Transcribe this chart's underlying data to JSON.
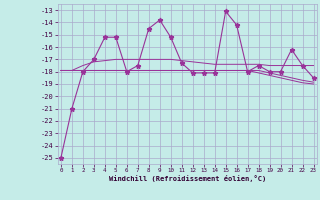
{
  "xlabel": "Windchill (Refroidissement éolien,°C)",
  "background_color": "#c5ece8",
  "grid_color": "#aaaacc",
  "line_color": "#993399",
  "x": [
    0,
    1,
    2,
    3,
    4,
    5,
    6,
    7,
    8,
    9,
    10,
    11,
    12,
    13,
    14,
    15,
    16,
    17,
    18,
    19,
    20,
    21,
    22,
    23
  ],
  "y_main": [
    -25,
    -21,
    -18,
    -17,
    -15.2,
    -15.2,
    -18,
    -17.5,
    -14.5,
    -13.8,
    -15.2,
    -17.3,
    -18.1,
    -18.1,
    -18.1,
    -13.1,
    -14.2,
    -18,
    -17.5,
    -18,
    -18,
    -16.2,
    -17.5,
    -18.5
  ],
  "y_smooth1": [
    -17.9,
    -17.9,
    -17.9,
    -17.9,
    -17.9,
    -17.9,
    -17.9,
    -17.9,
    -17.9,
    -17.9,
    -17.9,
    -17.9,
    -17.9,
    -17.9,
    -17.9,
    -17.9,
    -17.9,
    -17.9,
    -17.9,
    -18.1,
    -18.3,
    -18.5,
    -18.7,
    -18.85
  ],
  "y_smooth2": [
    -17.9,
    -17.9,
    -17.5,
    -17.2,
    -17.1,
    -17.0,
    -17.0,
    -17.0,
    -17.0,
    -17.0,
    -17.0,
    -17.1,
    -17.2,
    -17.3,
    -17.4,
    -17.4,
    -17.4,
    -17.4,
    -17.4,
    -17.5,
    -17.5,
    -17.5,
    -17.5,
    -17.5
  ],
  "y_smooth3": [
    -17.9,
    -17.9,
    -17.9,
    -17.9,
    -17.9,
    -17.9,
    -17.9,
    -17.9,
    -17.9,
    -17.9,
    -17.9,
    -17.9,
    -17.9,
    -17.9,
    -17.9,
    -17.9,
    -17.9,
    -17.9,
    -18.1,
    -18.3,
    -18.5,
    -18.7,
    -18.9,
    -19.0
  ],
  "ylim": [
    -25.5,
    -12.5
  ],
  "xlim": [
    -0.3,
    23.3
  ],
  "yticks": [
    -25,
    -24,
    -23,
    -22,
    -21,
    -20,
    -19,
    -18,
    -17,
    -16,
    -15,
    -14,
    -13
  ],
  "xticks": [
    0,
    1,
    2,
    3,
    4,
    5,
    6,
    7,
    8,
    9,
    10,
    11,
    12,
    13,
    14,
    15,
    16,
    17,
    18,
    19,
    20,
    21,
    22,
    23
  ]
}
